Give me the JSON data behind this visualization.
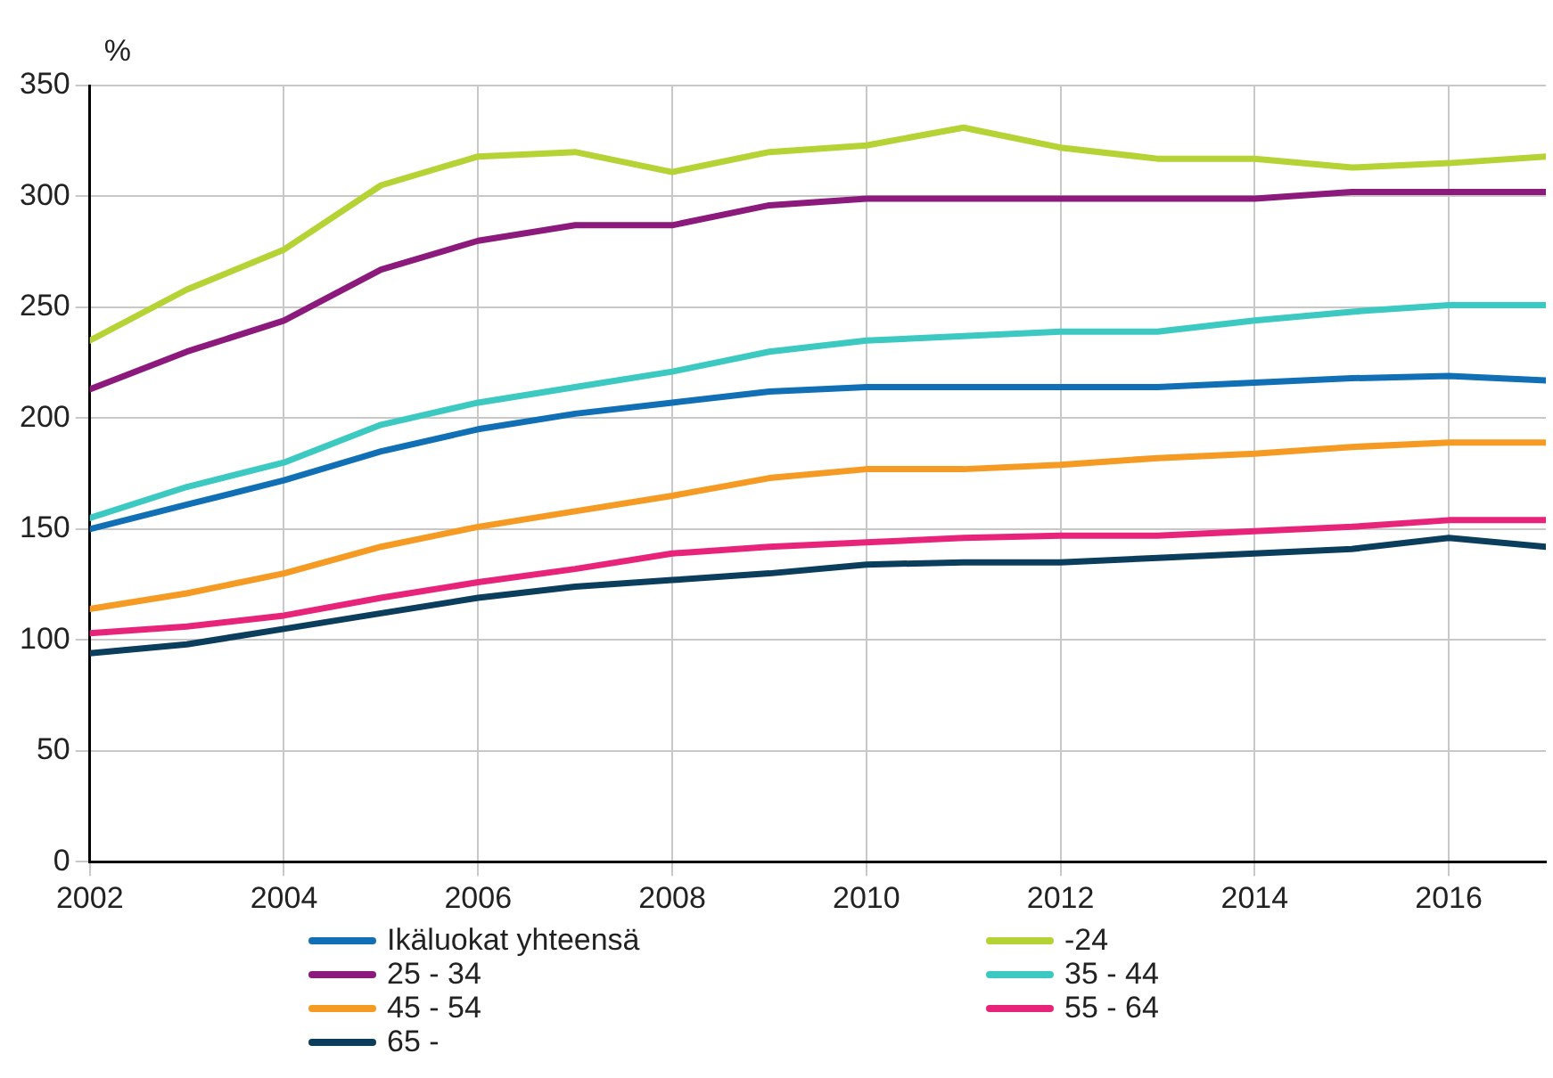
{
  "chart_data": {
    "type": "line",
    "ylabel": "%",
    "x": [
      2002,
      2003,
      2004,
      2005,
      2006,
      2007,
      2008,
      2009,
      2010,
      2011,
      2012,
      2013,
      2014,
      2015,
      2016,
      2017
    ],
    "xlim": [
      2002,
      2017
    ],
    "xticks": [
      2002,
      2004,
      2006,
      2008,
      2010,
      2012,
      2014,
      2016
    ],
    "ylim": [
      0,
      350
    ],
    "yticks": [
      0,
      50,
      100,
      150,
      200,
      250,
      300,
      350
    ],
    "grid": true,
    "legend": "bottom",
    "marker": "none",
    "line_style": "solid",
    "series": [
      {
        "name": "Ikäluokat yhteensä",
        "color": "#1170b5",
        "values": [
          150,
          161,
          172,
          185,
          195,
          202,
          207,
          212,
          214,
          214,
          214,
          214,
          216,
          218,
          219,
          217
        ]
      },
      {
        "name": "-24",
        "color": "#b5d334",
        "values": [
          235,
          258,
          276,
          305,
          318,
          320,
          311,
          320,
          323,
          331,
          322,
          317,
          317,
          313,
          315,
          318
        ]
      },
      {
        "name": "25 - 34",
        "color": "#8c1a7d",
        "values": [
          213,
          230,
          244,
          267,
          280,
          287,
          287,
          296,
          299,
          299,
          299,
          299,
          299,
          302,
          302,
          302
        ]
      },
      {
        "name": "35 - 44",
        "color": "#3cc9c1",
        "values": [
          155,
          169,
          180,
          197,
          207,
          214,
          221,
          230,
          235,
          237,
          239,
          239,
          244,
          248,
          251,
          251
        ]
      },
      {
        "name": "45 - 54",
        "color": "#f59a22",
        "values": [
          114,
          121,
          130,
          142,
          151,
          158,
          165,
          173,
          177,
          177,
          179,
          182,
          184,
          187,
          189,
          189
        ]
      },
      {
        "name": "55 - 64",
        "color": "#e8247a",
        "values": [
          103,
          106,
          111,
          119,
          126,
          132,
          139,
          142,
          144,
          146,
          147,
          147,
          149,
          151,
          154,
          154
        ]
      },
      {
        "name": "65 -",
        "color": "#0b3d5c",
        "values": [
          94,
          98,
          105,
          112,
          119,
          124,
          127,
          130,
          134,
          135,
          135,
          137,
          139,
          141,
          146,
          142
        ]
      }
    ]
  }
}
